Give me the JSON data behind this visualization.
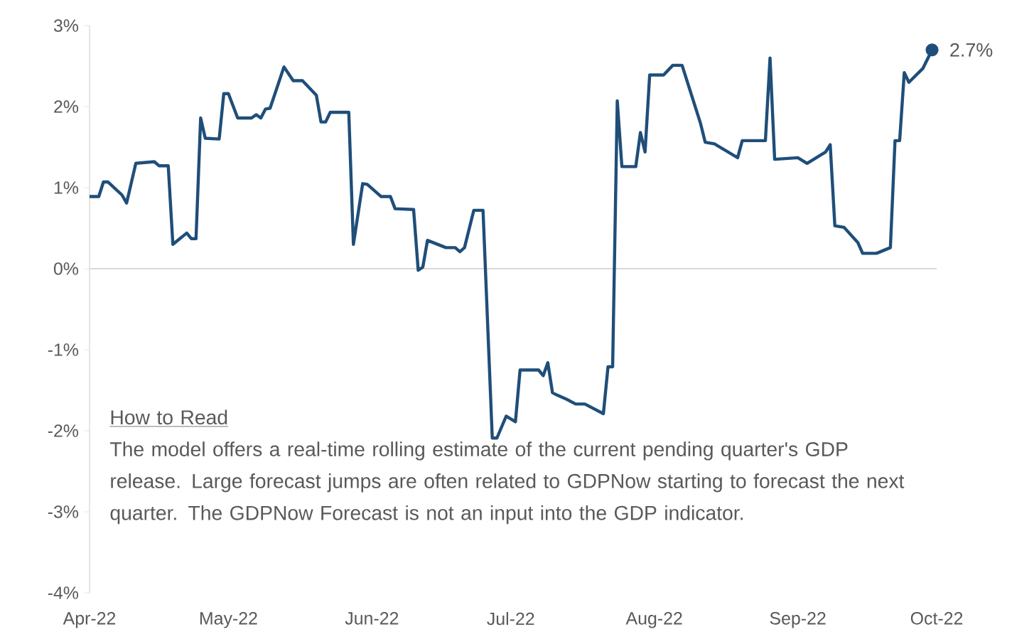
{
  "chart_data": {
    "type": "line",
    "x": [
      "2022-04-01",
      "2022-04-03",
      "2022-04-04",
      "2022-04-05",
      "2022-04-08",
      "2022-04-09",
      "2022-04-11",
      "2022-04-15",
      "2022-04-16",
      "2022-04-18",
      "2022-04-19",
      "2022-04-22",
      "2022-04-23",
      "2022-04-24",
      "2022-04-25",
      "2022-04-26",
      "2022-04-29",
      "2022-04-30",
      "2022-05-01",
      "2022-05-03",
      "2022-05-06",
      "2022-05-07",
      "2022-05-08",
      "2022-05-09",
      "2022-05-10",
      "2022-05-13",
      "2022-05-15",
      "2022-05-17",
      "2022-05-20",
      "2022-05-21",
      "2022-05-22",
      "2022-05-23",
      "2022-05-27",
      "2022-05-28",
      "2022-05-30",
      "2022-05-31",
      "2022-06-03",
      "2022-06-05",
      "2022-06-06",
      "2022-06-10",
      "2022-06-11",
      "2022-06-12",
      "2022-06-13",
      "2022-06-17",
      "2022-06-19",
      "2022-06-20",
      "2022-06-21",
      "2022-06-23",
      "2022-06-25",
      "2022-06-27",
      "2022-06-28",
      "2022-06-30",
      "2022-07-02",
      "2022-07-03",
      "2022-07-07",
      "2022-07-08",
      "2022-07-09",
      "2022-07-10",
      "2022-07-11",
      "2022-07-13",
      "2022-07-15",
      "2022-07-17",
      "2022-07-21",
      "2022-07-22",
      "2022-07-23",
      "2022-07-24",
      "2022-07-25",
      "2022-07-28",
      "2022-07-29",
      "2022-07-30",
      "2022-07-31",
      "2022-08-03",
      "2022-08-05",
      "2022-08-07",
      "2022-08-11",
      "2022-08-12",
      "2022-08-14",
      "2022-08-19",
      "2022-08-20",
      "2022-08-25",
      "2022-08-26",
      "2022-08-27",
      "2022-09-01",
      "2022-09-03",
      "2022-09-07",
      "2022-09-08",
      "2022-09-09",
      "2022-09-11",
      "2022-09-14",
      "2022-09-15",
      "2022-09-18",
      "2022-09-21",
      "2022-09-22",
      "2022-09-23",
      "2022-09-24",
      "2022-09-25",
      "2022-09-28",
      "2022-09-30"
    ],
    "series": [
      {
        "color": "#1f4e79",
        "values": [
          0.89,
          0.89,
          1.07,
          1.07,
          0.91,
          0.81,
          1.3,
          1.32,
          1.27,
          1.27,
          0.3,
          0.44,
          0.37,
          0.37,
          1.86,
          1.61,
          1.6,
          2.16,
          2.16,
          1.86,
          1.86,
          1.9,
          1.86,
          1.97,
          1.98,
          2.49,
          2.32,
          2.32,
          2.14,
          1.81,
          1.81,
          1.93,
          1.93,
          0.3,
          1.05,
          1.04,
          0.89,
          0.89,
          0.74,
          0.73,
          -0.02,
          0.02,
          0.35,
          0.26,
          0.26,
          0.21,
          0.26,
          0.72,
          0.72,
          -2.09,
          -2.09,
          -1.82,
          -1.89,
          -1.25,
          -1.25,
          -1.32,
          -1.16,
          -1.53,
          -1.56,
          -1.61,
          -1.67,
          -1.67,
          -1.79,
          -1.21,
          -1.21,
          2.07,
          1.26,
          1.26,
          1.68,
          1.44,
          2.39,
          2.39,
          2.51,
          2.51,
          1.79,
          1.56,
          1.54,
          1.37,
          1.58,
          1.58,
          2.6,
          1.35,
          1.37,
          1.3,
          1.44,
          1.53,
          0.53,
          0.51,
          0.32,
          0.19,
          0.19,
          0.26,
          1.58,
          1.58,
          2.42,
          2.3,
          2.47,
          2.7
        ]
      }
    ],
    "xlim": [
      "2022-04-01",
      "2022-10-01"
    ],
    "xticks": [
      {
        "value": "2022-04-01",
        "label": "Apr-22"
      },
      {
        "value": "2022-05-01",
        "label": "May-22"
      },
      {
        "value": "2022-06-01",
        "label": "Jun-22"
      },
      {
        "value": "2022-07-01",
        "label": "Jul-22"
      },
      {
        "value": "2022-08-01",
        "label": "Aug-22"
      },
      {
        "value": "2022-09-01",
        "label": "Sep-22"
      },
      {
        "value": "2022-10-01",
        "label": "Oct-22"
      }
    ],
    "ylim": [
      -4,
      3
    ],
    "yticks": [
      {
        "value": -4,
        "label": "-4%"
      },
      {
        "value": -3,
        "label": "-3%"
      },
      {
        "value": -2,
        "label": "-2%"
      },
      {
        "value": -1,
        "label": "-1%"
      },
      {
        "value": 0,
        "label": "0%"
      },
      {
        "value": 1,
        "label": "1%"
      },
      {
        "value": 2,
        "label": "2%"
      },
      {
        "value": 3,
        "label": "3%"
      }
    ],
    "ref_lines": [
      {
        "axis": "y",
        "value": 0,
        "color": "#d9d9d9"
      }
    ],
    "annotations": [
      "How to Read",
      "The model offers a real-time rolling estimate of the current pending quarter's GDP release. Large forecast jumps are often related to GDPNow starting to forecast the next quarter. The GDPNow Forecast is not an input into the GDP indicator.",
      {
        "text": "2.7%",
        "x": "2022-09-30",
        "y": 2.7
      }
    ],
    "grid": false
  }
}
